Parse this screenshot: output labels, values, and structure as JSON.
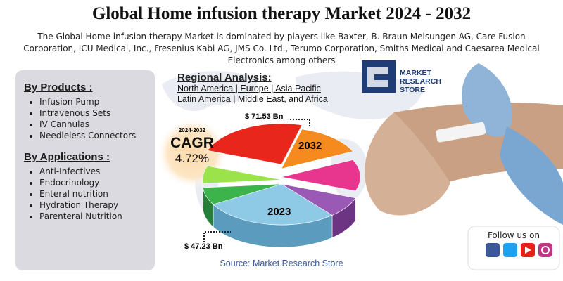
{
  "title": "Global Home infusion therapy Market 2024 - 2032",
  "subtitle": "The Global Home infusion therapy Market is dominated by players like Baxter, B. Braun Melsungen AG, Care Fusion Corporation, ICU Medical, Inc., Fresenius Kabi AG, JMS Co. Ltd., Terumo Corporation, Smiths Medical and Caesarea Medical Electronics among others",
  "products": {
    "heading": "By Products :",
    "items": [
      "Infusion Pump",
      "Intravenous Sets",
      "IV Cannulas",
      "Needleless Connectors"
    ]
  },
  "applications": {
    "heading": "By Applications :",
    "items": [
      "Anti-Infectives",
      "Endocrinology",
      "Enteral nutrition",
      "Hydration Therapy",
      "Parenteral Nutrition"
    ]
  },
  "regional": {
    "heading": "Regional Analysis:",
    "lines": [
      "North America | Europe | Asia Pacific",
      "Latin America | Middle East, and Africa"
    ]
  },
  "cagr": {
    "period": "2024-2032",
    "label": "CAGR",
    "value": "4.72%"
  },
  "pie": {
    "label_top": "2032",
    "value_top": "$ 71.53 Bn",
    "label_bottom": "2023",
    "value_bottom": "$ 47.23 Bn"
  },
  "logo": "MARKET RESEARCH STORE",
  "follow": "Follow us on",
  "source": "Source:  Market  Research Store"
}
